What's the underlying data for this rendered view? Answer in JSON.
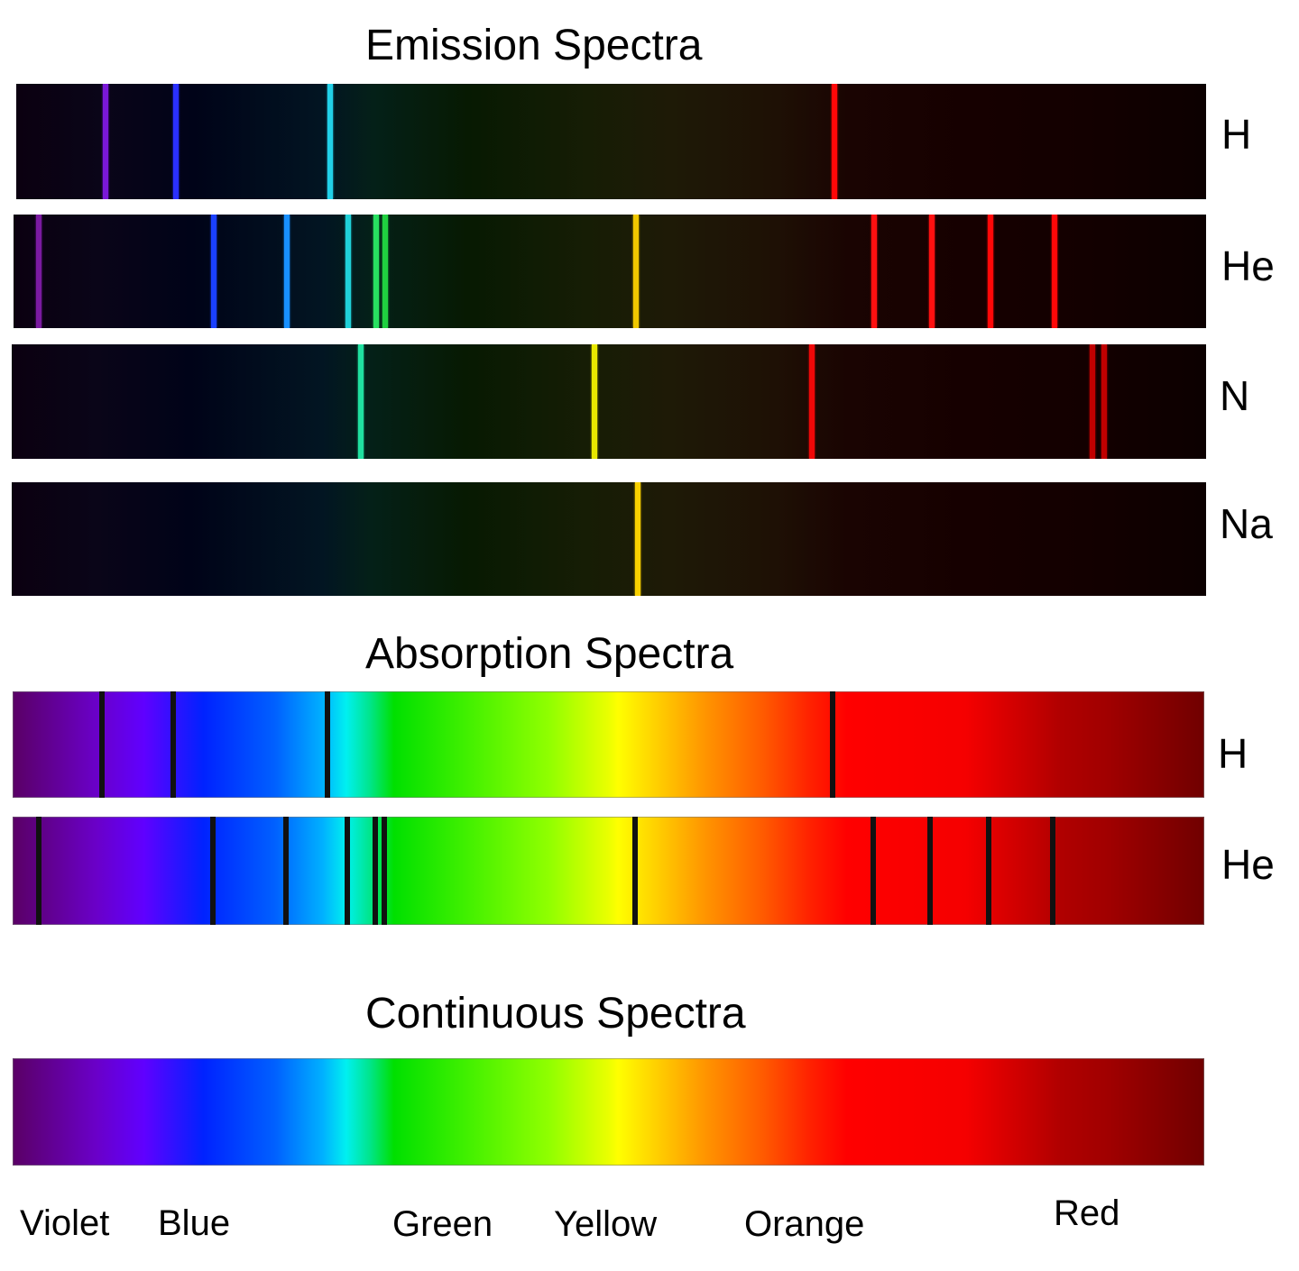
{
  "emission": {
    "title": "Emission Spectra",
    "rows": [
      {
        "element": "H",
        "lines": [
          {
            "pos": 0.075,
            "color": "#7a18d8"
          },
          {
            "pos": 0.134,
            "color": "#2a30ff"
          },
          {
            "pos": 0.264,
            "color": "#22d0e8"
          },
          {
            "pos": 0.688,
            "color": "#ff0808"
          }
        ]
      },
      {
        "element": "He",
        "lines": [
          {
            "pos": 0.021,
            "color": "#7a1aa0"
          },
          {
            "pos": 0.168,
            "color": "#1a40ff"
          },
          {
            "pos": 0.229,
            "color": "#1890ff"
          },
          {
            "pos": 0.281,
            "color": "#20d0d8"
          },
          {
            "pos": 0.304,
            "color": "#28e060"
          },
          {
            "pos": 0.312,
            "color": "#20d040"
          },
          {
            "pos": 0.522,
            "color": "#f0c800"
          },
          {
            "pos": 0.722,
            "color": "#ff1010"
          },
          {
            "pos": 0.77,
            "color": "#ff1010"
          },
          {
            "pos": 0.819,
            "color": "#ff0808"
          },
          {
            "pos": 0.873,
            "color": "#ff0808"
          }
        ]
      },
      {
        "element": "N",
        "lines": [
          {
            "pos": 0.292,
            "color": "#20e0a0"
          },
          {
            "pos": 0.488,
            "color": "#e8e800"
          },
          {
            "pos": 0.67,
            "color": "#f00808"
          },
          {
            "pos": 0.905,
            "color": "#c00000"
          },
          {
            "pos": 0.915,
            "color": "#c00000"
          }
        ]
      },
      {
        "element": "Na",
        "lines": [
          {
            "pos": 0.524,
            "color": "#f8d000"
          }
        ]
      }
    ]
  },
  "absorption": {
    "title": "Absorption Spectra",
    "rows": [
      {
        "element": "H",
        "lines": [
          0.075,
          0.135,
          0.264,
          0.688
        ]
      },
      {
        "element": "He",
        "lines": [
          0.022,
          0.168,
          0.229,
          0.281,
          0.304,
          0.312,
          0.522,
          0.722,
          0.77,
          0.819,
          0.873
        ]
      }
    ]
  },
  "continuous": {
    "title": "Continuous Spectra"
  },
  "color_labels": [
    "Violet",
    "Blue",
    "Green",
    "Yellow",
    "Orange",
    "Red"
  ]
}
